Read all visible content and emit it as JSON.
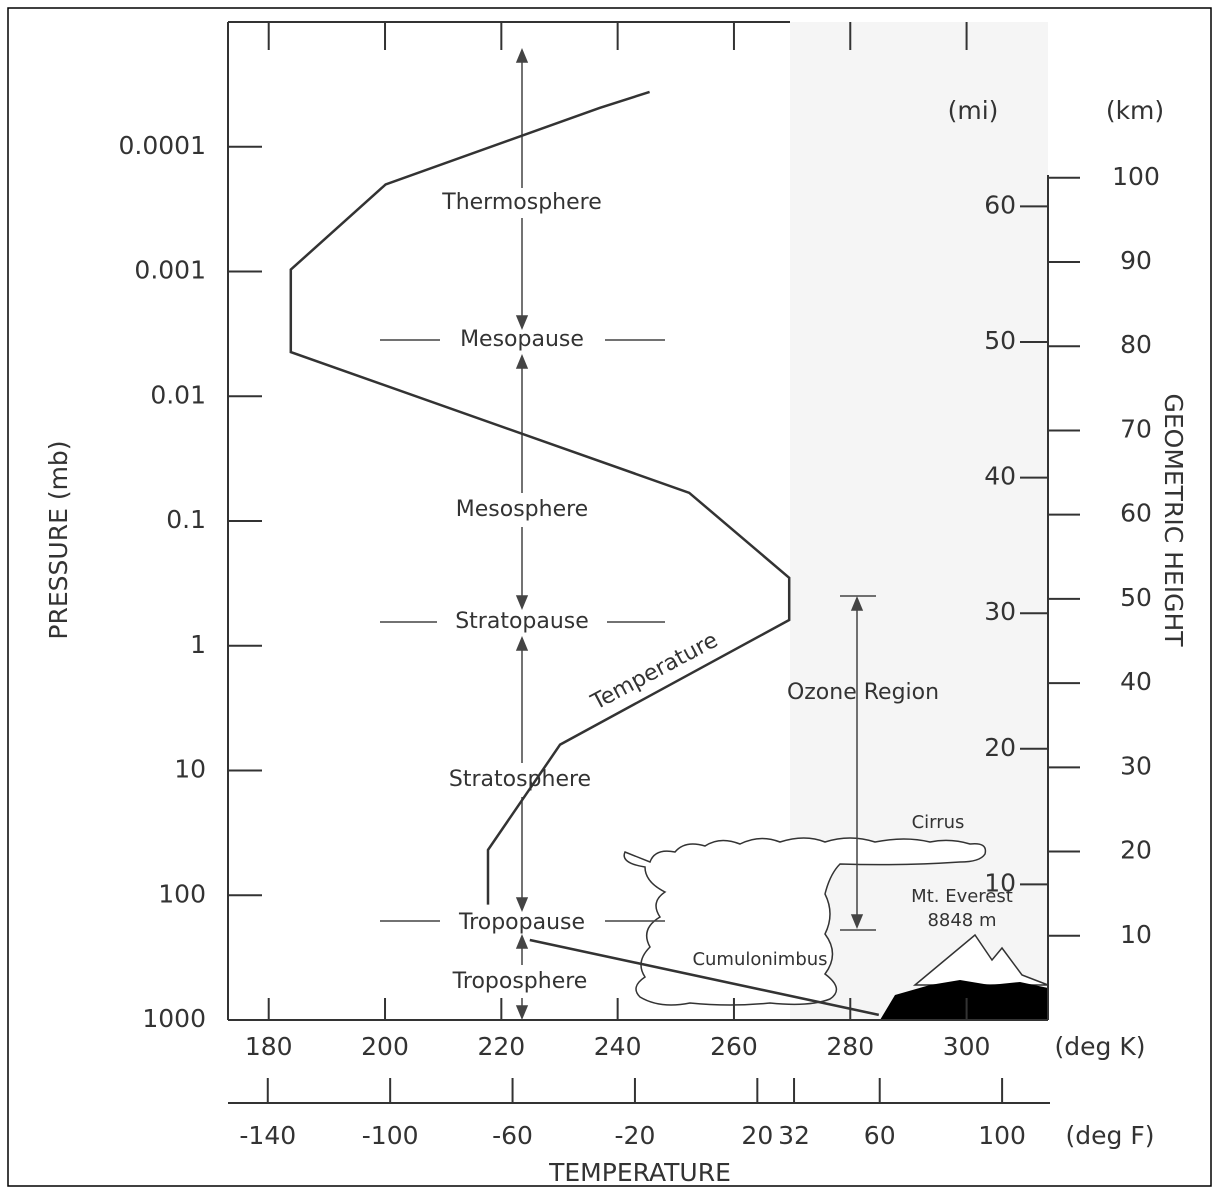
{
  "chart_data": {
    "type": "line",
    "x_label": "TEMPERATURE",
    "x_unit": "(deg K)",
    "x2_unit": "(deg F)",
    "y_label": "GEOMETRIC HEIGHT",
    "y_unit": "(km)",
    "y2_unit": "(mi)",
    "pressure_label": "PRESSURE (mb)",
    "xlim": [
      173,
      314
    ],
    "xticks": [
      180,
      200,
      220,
      240,
      260,
      280,
      300
    ],
    "x2lim": [
      -153,
      115
    ],
    "x2ticks": [
      -140,
      -100,
      -60,
      -20,
      20,
      32,
      60,
      100
    ],
    "ylim": [
      0,
      118.5
    ],
    "yticks": [
      10,
      20,
      30,
      40,
      50,
      60,
      70,
      80,
      90,
      100
    ],
    "y2lim": [
      0,
      73.6
    ],
    "y2ticks": [
      10,
      20,
      30,
      40,
      50,
      60
    ],
    "pressure_lim": [
      1000,
      1e-05
    ],
    "pressure_log": true,
    "pressure_ticks": [
      0.0001,
      0.001,
      0.01,
      0.1,
      1,
      10,
      100,
      1000
    ],
    "series": [
      {
        "name": "Temperature",
        "color": "#333333",
        "x": [
          245.5,
          236.9,
          200.1,
          183.8,
          183.8,
          252.3,
          269.5,
          269.5,
          230.1,
          217.7,
          217.7,
          null,
          224.9,
          284.9
        ],
        "values": [
          110.2,
          108.3,
          99.2,
          89.1,
          79.3,
          62.6,
          52.5,
          47.5,
          32.7,
          20.2,
          13.7,
          null,
          9.5,
          0.6
        ]
      }
    ],
    "annotations": [
      "Thermosphere",
      "Mesopause",
      "Mesosphere",
      "Stratopause",
      "Stratosphere",
      "Tropopause",
      "Troposphere",
      "Ozone Region",
      "Cirrus",
      "Cumulonimbus",
      "Mt. Everest",
      "8848 m"
    ]
  }
}
